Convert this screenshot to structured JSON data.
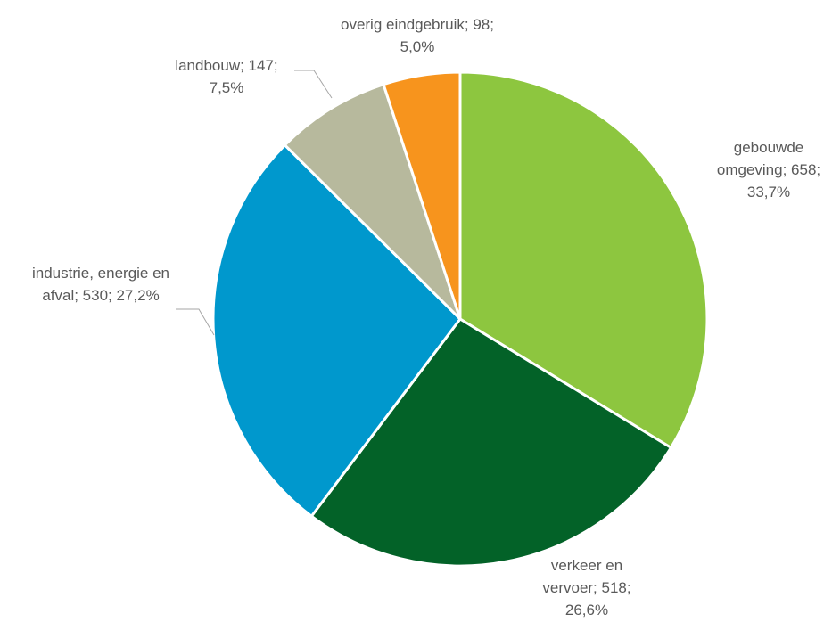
{
  "chart_data": {
    "type": "pie",
    "title": "",
    "slices": [
      {
        "label_lines": [
          "gebouwde",
          "omgeving; 658;",
          "33,7%"
        ],
        "category": "gebouwde omgeving",
        "value": 658,
        "percent": "33,7%",
        "color": "#8dc63f"
      },
      {
        "label_lines": [
          "verkeer en",
          "vervoer; 518;",
          "26,6%"
        ],
        "category": "verkeer en vervoer",
        "value": 518,
        "percent": "26,6%",
        "color": "#036228"
      },
      {
        "label_lines": [
          "industrie, energie en",
          "afval; 530; 27,2%"
        ],
        "category": "industrie, energie en afval",
        "value": 530,
        "percent": "27,2%",
        "color": "#0098cd"
      },
      {
        "label_lines": [
          "landbouw; 147;",
          "7,5%"
        ],
        "category": "landbouw",
        "value": 147,
        "percent": "7,5%",
        "color": "#b7b99d"
      },
      {
        "label_lines": [
          "overig eindgebruik; 98;",
          "5,0%"
        ],
        "category": "overig eindgebruik",
        "value": 98,
        "percent": "5,0%",
        "color": "#f7941d"
      }
    ],
    "start_angle": "12 o'clock",
    "direction": "clockwise",
    "legend": "none",
    "data_labels": "outside with leader lines"
  }
}
